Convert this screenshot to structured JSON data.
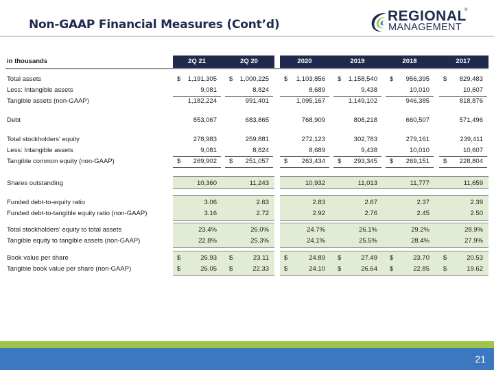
{
  "header": {
    "title": "Non-GAAP Financial Measures (Cont’d)",
    "logo_line1": "REGIONAL",
    "logo_line2": "MANAGEMENT",
    "logo_reg": "®"
  },
  "colors": {
    "navy": "#1f2a4d",
    "green_band": "#e2ecd4",
    "footer_green": "#9fc544",
    "footer_blue": "#3c78c0"
  },
  "table": {
    "unit_label": "in thousands",
    "columns": [
      "2Q 21",
      "2Q 20",
      "2020",
      "2019",
      "2018",
      "2017"
    ],
    "rows": [
      {
        "label": "Total assets",
        "dollar": true,
        "values": [
          "1,191,305",
          "1,000,225",
          "1,103,856",
          "1,158,540",
          "956,395",
          "829,483"
        ]
      },
      {
        "label": "Less: Intangible assets",
        "dollar": false,
        "values": [
          "9,081",
          "8,824",
          "8,689",
          "9,438",
          "10,010",
          "10,607"
        ]
      },
      {
        "label": "Tangible assets (non-GAAP)",
        "dollar": false,
        "values": [
          "1,182,224",
          "991,401",
          "1,095,167",
          "1,149,102",
          "946,385",
          "818,876"
        ]
      },
      {
        "label": "Debt",
        "dollar": false,
        "values": [
          "853,067",
          "683,865",
          "768,909",
          "808,218",
          "660,507",
          "571,496"
        ]
      },
      {
        "label": "Total stockholders' equity",
        "dollar": false,
        "values": [
          "278,983",
          "259,881",
          "272,123",
          "302,783",
          "279,161",
          "239,411"
        ]
      },
      {
        "label": "Less: Intangible assets",
        "dollar": false,
        "values": [
          "9,081",
          "8,824",
          "8,689",
          "9,438",
          "10,010",
          "10,607"
        ]
      },
      {
        "label": "Tangible common equity (non-GAAP)",
        "dollar": true,
        "values": [
          "269,902",
          "251,057",
          "263,434",
          "293,345",
          "269,151",
          "228,804"
        ]
      },
      {
        "label": "Shares outstanding",
        "dollar": false,
        "values": [
          "10,360",
          "11,243",
          "10,932",
          "11,013",
          "11,777",
          "11,659"
        ]
      },
      {
        "label": "Funded debt-to-equity ratio",
        "dollar": false,
        "values": [
          "3.06",
          "2.63",
          "2.83",
          "2.67",
          "2.37",
          "2.39"
        ]
      },
      {
        "label": "Funded debt-to-tangible equity ratio (non-GAAP)",
        "dollar": false,
        "values": [
          "3.16",
          "2.72",
          "2.92",
          "2.76",
          "2.45",
          "2.50"
        ]
      },
      {
        "label": "Total stockholders' equity to total assets",
        "dollar": false,
        "values": [
          "23.4%",
          "26.0%",
          "24.7%",
          "26.1%",
          "29.2%",
          "28.9%"
        ]
      },
      {
        "label": "Tangible equity to tangible assets (non-GAAP)",
        "dollar": false,
        "values": [
          "22.8%",
          "25.3%",
          "24.1%",
          "25.5%",
          "28.4%",
          "27.9%"
        ]
      },
      {
        "label": "Book value per share",
        "dollar": true,
        "values": [
          "26.93",
          "23.11",
          "24.89",
          "27.49",
          "23.70",
          "20.53"
        ]
      },
      {
        "label": "Tangible book value per share (non-GAAP)",
        "dollar": true,
        "values": [
          "26.05",
          "22.33",
          "24.10",
          "26.64",
          "22.85",
          "19.62"
        ]
      }
    ],
    "dollar_sign": "$"
  },
  "footer": {
    "page_number": "21"
  }
}
